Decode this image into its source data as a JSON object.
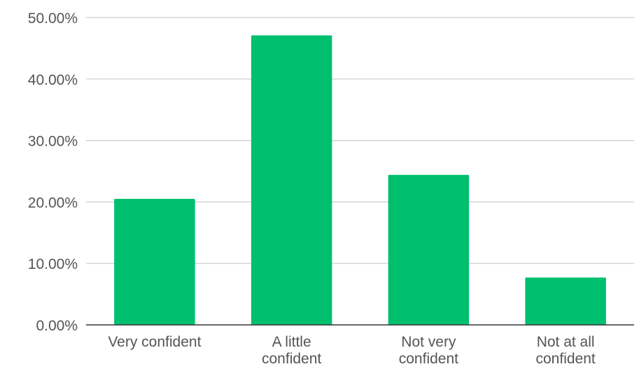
{
  "chart_data": {
    "type": "bar",
    "title": "",
    "xlabel": "",
    "ylabel": "",
    "categories": [
      [
        "Very confident"
      ],
      [
        "A little",
        "confident"
      ],
      [
        "Not very",
        "confident"
      ],
      [
        "Not at all",
        "confident"
      ]
    ],
    "values": [
      20.5,
      47.1,
      24.4,
      7.7
    ],
    "ylim": [
      0,
      50
    ],
    "yticks": [
      0,
      10,
      20,
      30,
      40,
      50
    ],
    "ytick_labels": [
      "0.00%",
      "10.00%",
      "20.00%",
      "30.00%",
      "40.00%",
      "50.00%"
    ],
    "grid": true,
    "legend": "none",
    "bar_color": "#00BF6F",
    "gridline_color": "#CCCCCC",
    "axis_color": "#333333",
    "text_color": "#555555"
  }
}
